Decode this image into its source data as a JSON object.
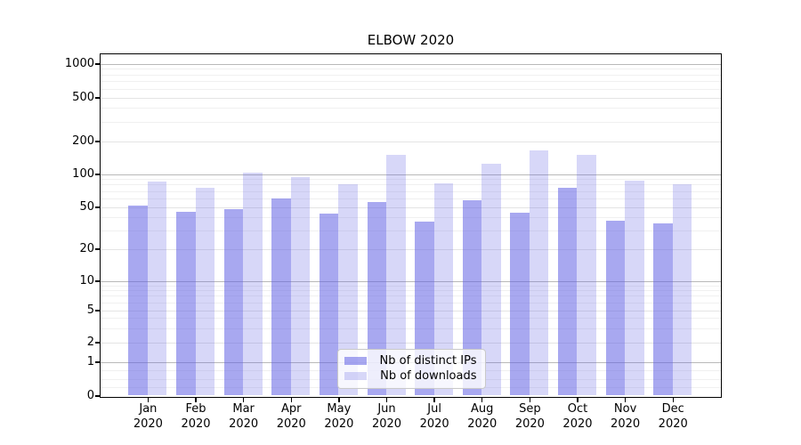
{
  "chart_data": {
    "type": "bar",
    "title": "ELBOW 2020",
    "categories": [
      "Jan\n2020",
      "Feb\n2020",
      "Mar\n2020",
      "Apr\n2020",
      "May\n2020",
      "Jun\n2020",
      "Jul\n2020",
      "Aug\n2020",
      "Sep\n2020",
      "Oct\n2020",
      "Nov\n2020",
      "Dec\n2020"
    ],
    "series": [
      {
        "name": "Nb of distinct IPs",
        "color": "rgba(96,96,228,0.55)",
        "values": [
          51,
          45,
          48,
          60,
          43,
          55,
          36,
          58,
          44,
          75,
          37,
          35
        ]
      },
      {
        "name": "Nb of downloads",
        "color": "rgba(96,96,228,0.25)",
        "values": [
          85,
          75,
          102,
          93,
          80,
          150,
          82,
          125,
          165,
          150,
          87,
          80
        ]
      }
    ],
    "yscale": "symlog",
    "yticks": [
      0,
      1,
      2,
      5,
      10,
      20,
      50,
      100,
      200,
      500,
      1000
    ],
    "ylim": [
      0,
      1000
    ],
    "grid": true,
    "legend_position": "lower center",
    "colors": {
      "major_grid": "#b9b9b9",
      "labeled_minor_grid": "#e4e4e4",
      "minor_grid": "#f0f0f0",
      "spine": "#000000"
    }
  }
}
